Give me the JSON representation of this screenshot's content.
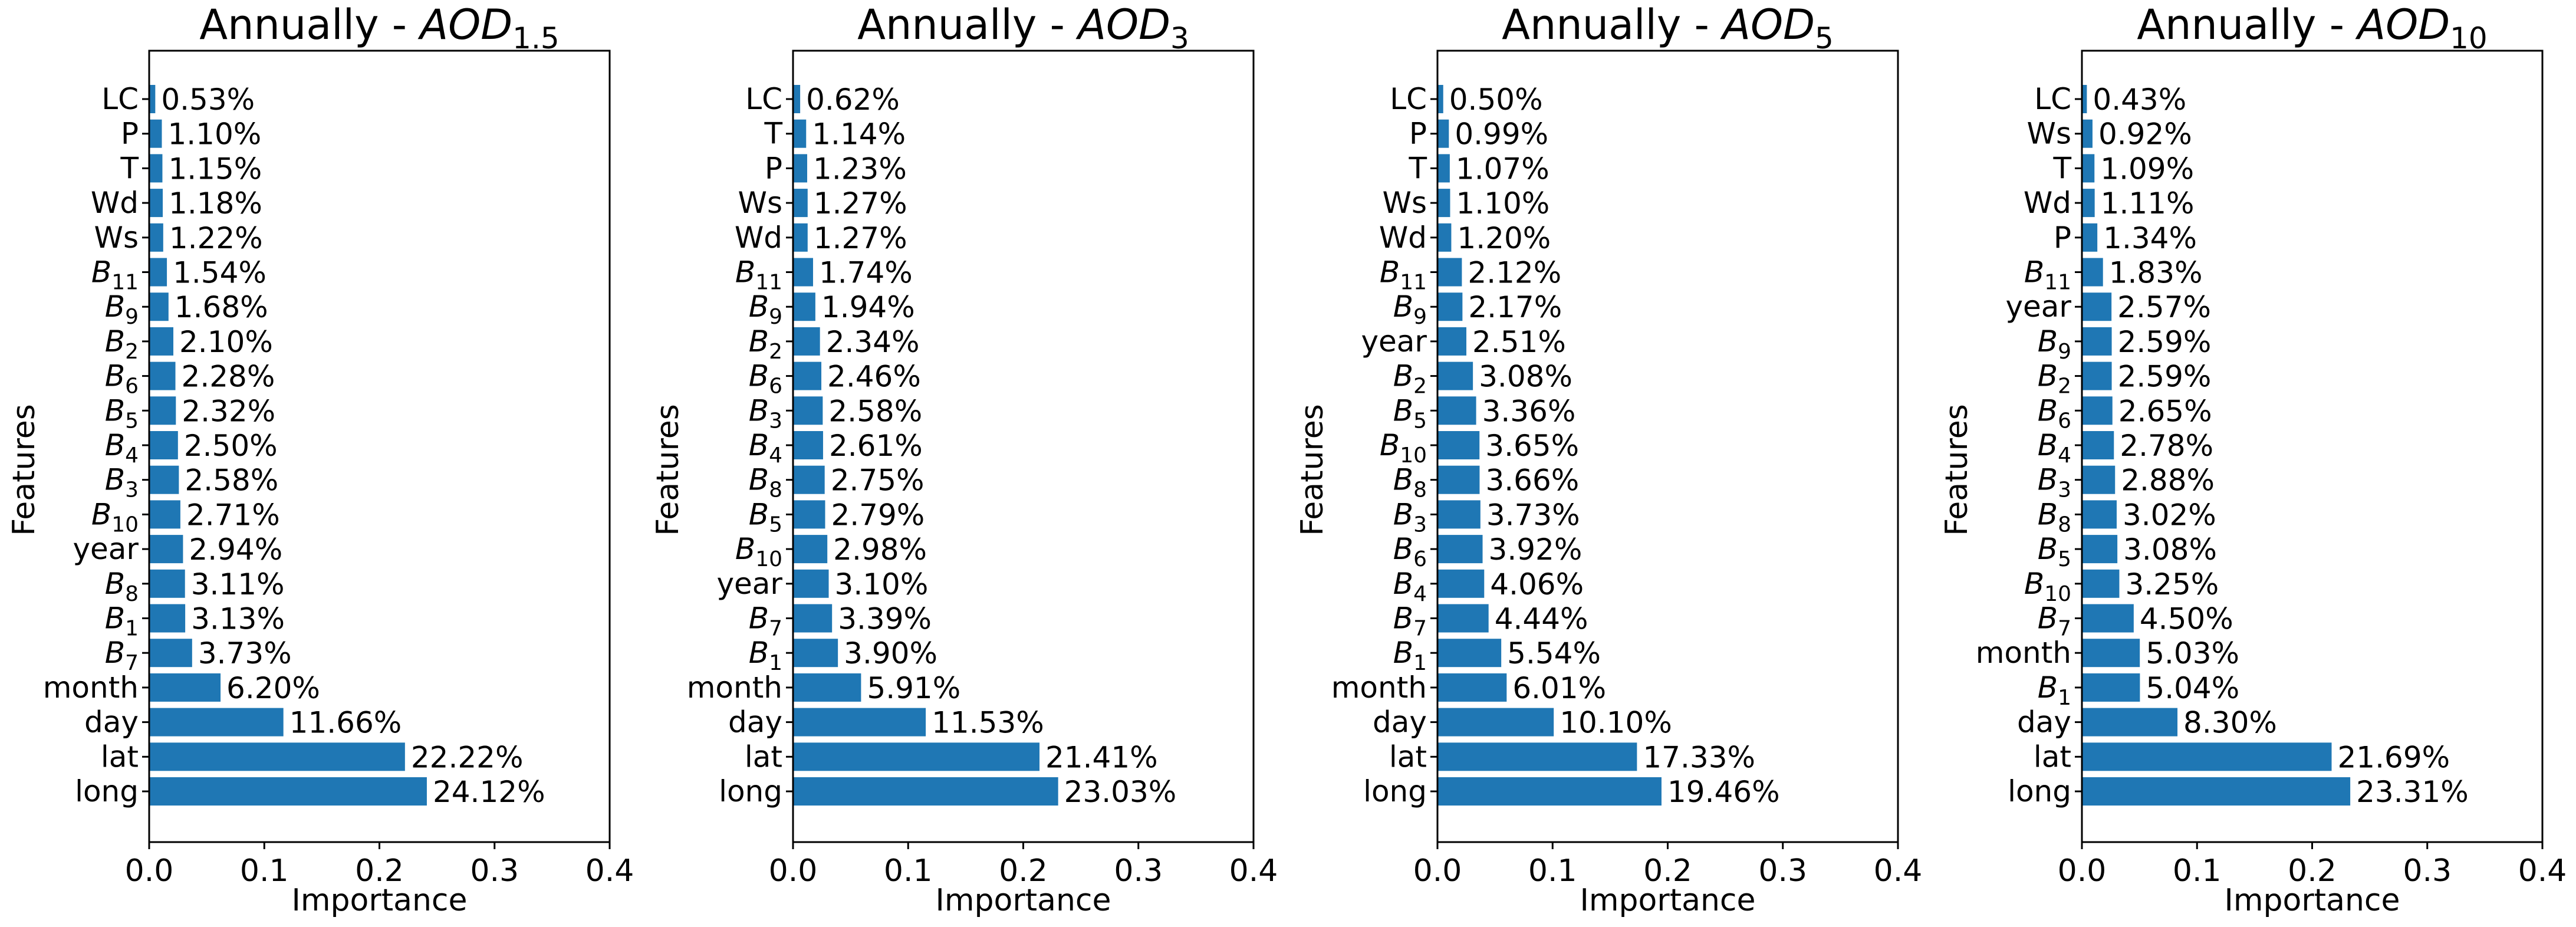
{
  "chart_data": [
    {
      "type": "bar",
      "orientation": "horizontal",
      "title": "Annually -  AOD1.5",
      "title_base": "Annually -  ",
      "title_var": "AOD",
      "title_sub": "1.5",
      "xlabel": "Importance",
      "ylabel": "Features",
      "xlim": [
        0,
        0.4
      ],
      "xticks": [
        "0.0",
        "0.1",
        "0.2",
        "0.3",
        "0.4"
      ],
      "grid": false,
      "categories": [
        "LC",
        "P",
        "T",
        "Wd",
        "Ws",
        "B11",
        "B9",
        "B2",
        "B6",
        "B5",
        "B4",
        "B3",
        "B10",
        "year",
        "B8",
        "B1",
        "B7",
        "month",
        "day",
        "lat",
        "long"
      ],
      "values": [
        0.0053,
        0.011,
        0.0115,
        0.0118,
        0.0122,
        0.0154,
        0.0168,
        0.021,
        0.0228,
        0.0232,
        0.025,
        0.0258,
        0.0271,
        0.0294,
        0.0311,
        0.0313,
        0.0373,
        0.062,
        0.1166,
        0.2222,
        0.2412
      ],
      "value_labels": [
        "0.53%",
        "1.10%",
        "1.15%",
        "1.18%",
        "1.22%",
        "1.54%",
        "1.68%",
        "2.10%",
        "2.28%",
        "2.32%",
        "2.50%",
        "2.58%",
        "2.71%",
        "2.94%",
        "3.11%",
        "3.13%",
        "3.73%",
        "6.20%",
        "11.66%",
        "22.22%",
        "24.12%"
      ]
    },
    {
      "type": "bar",
      "orientation": "horizontal",
      "title": "Annually -  AOD3",
      "title_base": "Annually -  ",
      "title_var": "AOD",
      "title_sub": "3",
      "xlabel": "Importance",
      "ylabel": "Features",
      "xlim": [
        0,
        0.4
      ],
      "xticks": [
        "0.0",
        "0.1",
        "0.2",
        "0.3",
        "0.4"
      ],
      "grid": false,
      "categories": [
        "LC",
        "T",
        "P",
        "Ws",
        "Wd",
        "B11",
        "B9",
        "B2",
        "B6",
        "B3",
        "B4",
        "B8",
        "B5",
        "B10",
        "year",
        "B7",
        "B1",
        "month",
        "day",
        "lat",
        "long"
      ],
      "values": [
        0.0062,
        0.0114,
        0.0123,
        0.0127,
        0.0127,
        0.0174,
        0.0194,
        0.0234,
        0.0246,
        0.0258,
        0.0261,
        0.0275,
        0.0279,
        0.0298,
        0.031,
        0.0339,
        0.039,
        0.0591,
        0.1153,
        0.2141,
        0.2303
      ],
      "value_labels": [
        "0.62%",
        "1.14%",
        "1.23%",
        "1.27%",
        "1.27%",
        "1.74%",
        "1.94%",
        "2.34%",
        "2.46%",
        "2.58%",
        "2.61%",
        "2.75%",
        "2.79%",
        "2.98%",
        "3.10%",
        "3.39%",
        "3.90%",
        "5.91%",
        "11.53%",
        "21.41%",
        "23.03%"
      ]
    },
    {
      "type": "bar",
      "orientation": "horizontal",
      "title": "Annually -  AOD5",
      "title_base": "Annually -  ",
      "title_var": "AOD",
      "title_sub": "5",
      "xlabel": "Importance",
      "ylabel": "Features",
      "xlim": [
        0,
        0.4
      ],
      "xticks": [
        "0.0",
        "0.1",
        "0.2",
        "0.3",
        "0.4"
      ],
      "grid": false,
      "categories": [
        "LC",
        "P",
        "T",
        "Ws",
        "Wd",
        "B11",
        "B9",
        "year",
        "B2",
        "B5",
        "B10",
        "B8",
        "B3",
        "B6",
        "B4",
        "B7",
        "B1",
        "month",
        "day",
        "lat",
        "long"
      ],
      "values": [
        0.005,
        0.0099,
        0.0107,
        0.011,
        0.012,
        0.0212,
        0.0217,
        0.0251,
        0.0308,
        0.0336,
        0.0365,
        0.0366,
        0.0373,
        0.0392,
        0.0406,
        0.0444,
        0.0554,
        0.0601,
        0.101,
        0.1733,
        0.1946
      ],
      "value_labels": [
        "0.50%",
        "0.99%",
        "1.07%",
        "1.10%",
        "1.20%",
        "2.12%",
        "2.17%",
        "2.51%",
        "3.08%",
        "3.36%",
        "3.65%",
        "3.66%",
        "3.73%",
        "3.92%",
        "4.06%",
        "4.44%",
        "5.54%",
        "6.01%",
        "10.10%",
        "17.33%",
        "19.46%"
      ]
    },
    {
      "type": "bar",
      "orientation": "horizontal",
      "title": "Annually -  AOD10",
      "title_base": "Annually -  ",
      "title_var": "AOD",
      "title_sub": "10",
      "xlabel": "Importance",
      "ylabel": "Features",
      "xlim": [
        0,
        0.4
      ],
      "xticks": [
        "0.0",
        "0.1",
        "0.2",
        "0.3",
        "0.4"
      ],
      "grid": false,
      "categories": [
        "LC",
        "Ws",
        "T",
        "Wd",
        "P",
        "B11",
        "year",
        "B9",
        "B2",
        "B6",
        "B4",
        "B3",
        "B8",
        "B5",
        "B10",
        "B7",
        "month",
        "B1",
        "day",
        "lat",
        "long"
      ],
      "values": [
        0.0043,
        0.0092,
        0.0109,
        0.0111,
        0.0134,
        0.0183,
        0.0257,
        0.0259,
        0.0259,
        0.0265,
        0.0278,
        0.0288,
        0.0302,
        0.0308,
        0.0325,
        0.045,
        0.0503,
        0.0504,
        0.083,
        0.2169,
        0.2331
      ],
      "value_labels": [
        "0.43%",
        "0.92%",
        "1.09%",
        "1.11%",
        "1.34%",
        "1.83%",
        "2.57%",
        "2.59%",
        "2.59%",
        "2.65%",
        "2.78%",
        "2.88%",
        "3.02%",
        "3.08%",
        "3.25%",
        "4.50%",
        "5.03%",
        "5.04%",
        "8.30%",
        "21.69%",
        "23.31%"
      ]
    }
  ],
  "colors": {
    "bar": "#1f77b4",
    "axis": "#000000"
  }
}
